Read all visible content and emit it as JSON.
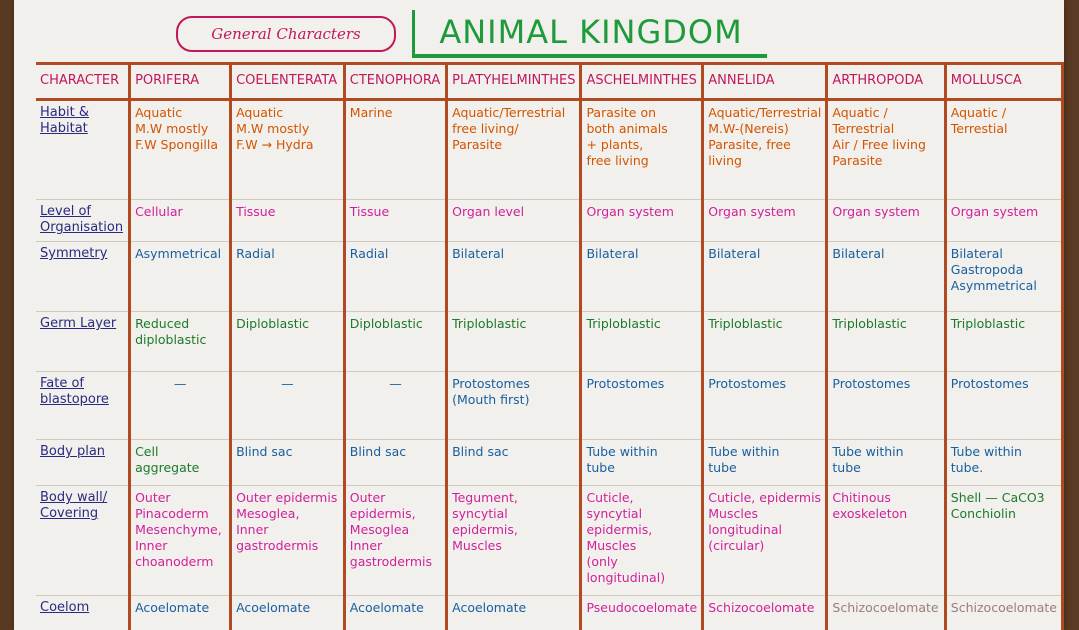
{
  "header": {
    "subtitle": "General Characters",
    "title": "ANIMAL KINGDOM"
  },
  "columns": [
    "CHARACTER",
    "PORIFERA",
    "COELENTERATA",
    "CTENOPHORA",
    "PLATYHELMINTHES",
    "ASCHELMINTHES",
    "ANNELIDA",
    "ARTHROPODA",
    "MOLLUSCA"
  ],
  "rows": [
    {
      "label": "Habit & Habitat",
      "cells": [
        "Aquatic\nM.W mostly\nF.W Spongilla",
        "Aquatic\nM.W mostly\nF.W → Hydra",
        "Marine",
        "Aquatic/Terrestrial\nfree living/\nParasite",
        "Parasite on\nboth animals\n+ plants,\nfree living",
        "Aquatic/Terrestrial\nM.W-(Nereis)\nParasite, free\nliving",
        "Aquatic / Terrestrial\nAir / Free living\nParasite",
        "Aquatic /\nTerrestial"
      ]
    },
    {
      "label": "Level of Organisation",
      "cells": [
        "Cellular",
        "Tissue",
        "Tissue",
        "Organ level",
        "Organ system",
        "Organ system",
        "Organ system",
        "Organ system"
      ]
    },
    {
      "label": "Symmetry",
      "cells": [
        "Asymmetrical",
        "Radial",
        "Radial",
        "Bilateral",
        "Bilateral",
        "Bilateral",
        "Bilateral",
        "Bilateral\nGastropoda\nAsymmetrical"
      ]
    },
    {
      "label": "Germ Layer",
      "cells": [
        "Reduced\ndiploblastic",
        "Diploblastic",
        "Diploblastic",
        "Triploblastic",
        "Triploblastic",
        "Triploblastic",
        "Triploblastic",
        "Triploblastic"
      ]
    },
    {
      "label": "Fate of blastopore",
      "cells": [
        "—",
        "—",
        "—",
        "Protostomes\n(Mouth first)",
        "Protostomes",
        "Protostomes",
        "Protostomes",
        "Protostomes"
      ]
    },
    {
      "label": "Body plan",
      "cells": [
        "Cell aggregate",
        "Blind sac",
        "Blind sac",
        "Blind sac",
        "Tube within\ntube",
        "Tube within\ntube",
        "Tube within\ntube",
        "Tube within\ntube."
      ]
    },
    {
      "label": "Body wall/ Covering",
      "cells": [
        "Outer Pinacoderm\nMesenchyme,\nInner choanoderm",
        "Outer epidermis\nMesoglea,\nInner gastrodermis",
        "Outer epidermis,\nMesoglea\nInner gastrodermis",
        "Tegument,\nsyncytial\nepidermis,\nMuscles",
        "Cuticle,\nsyncytial\nepidermis,\nMuscles\n(only longitudinal)",
        "Cuticle, epidermis\nMuscles\nlongitudinal (circular)",
        "Chitinous\nexoskeleton",
        "Shell — CaCO3\nConchiolin"
      ]
    },
    {
      "label": "Coelom",
      "cells": [
        "Acoelomate",
        "Acoelomate",
        "Acoelomate",
        "Acoelomate",
        "Pseudocoelomate",
        "Schizocoelomate",
        "Schizocoelomate",
        "Schizocoelomate"
      ]
    }
  ]
}
